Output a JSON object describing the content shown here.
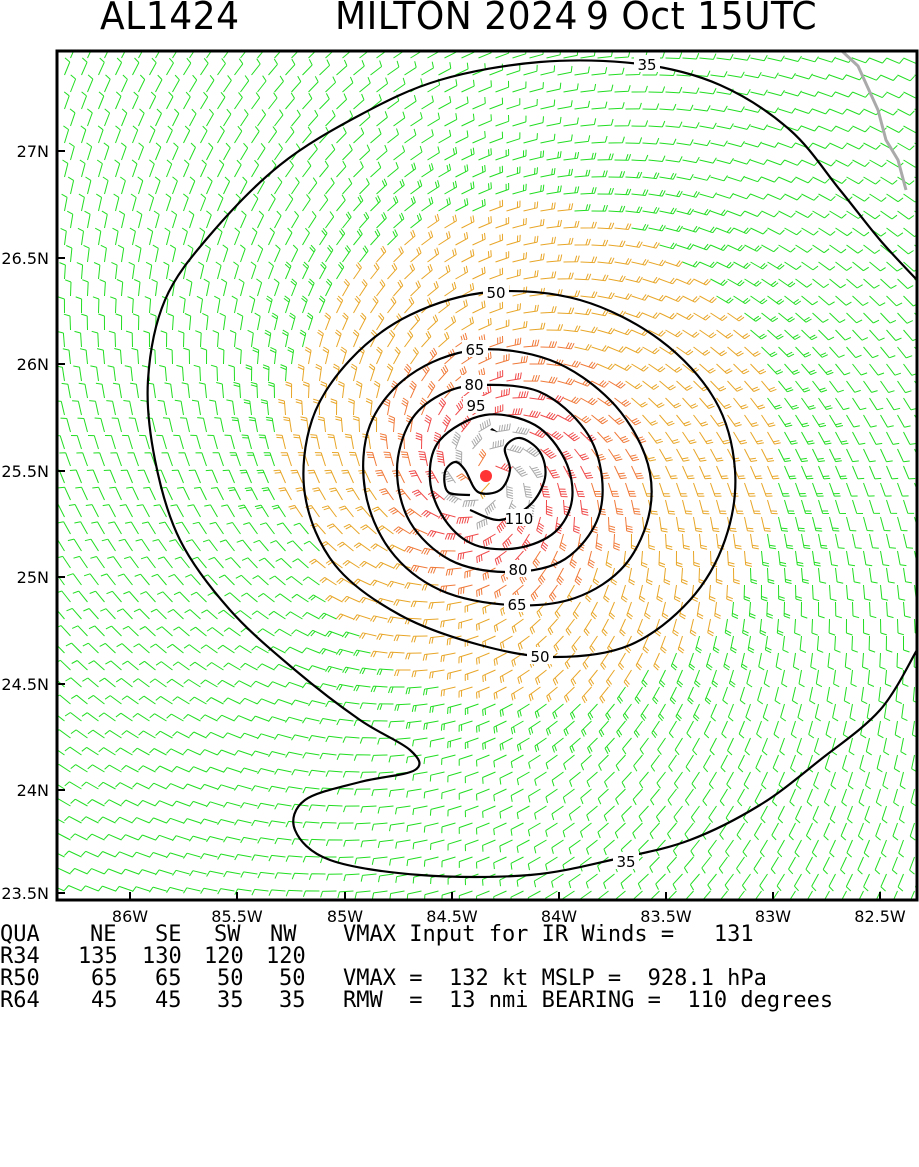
{
  "header": {
    "storm_id": "AL1424",
    "storm_name_year": "MILTON 2024",
    "datetime": "9 Oct 15UTC"
  },
  "map": {
    "lon_labels": [
      "86W",
      "85.5W",
      "85W",
      "84.5W",
      "84W",
      "83.5W",
      "83W",
      "82.5W"
    ],
    "lat_labels": [
      "27N",
      "26.5N",
      "26N",
      "25.5N",
      "25N",
      "24.5N",
      "24N",
      "23.5N"
    ],
    "contour_labels": [
      "35",
      "50",
      "65",
      "80",
      "95",
      "110",
      "35",
      "50",
      "65",
      "80"
    ],
    "center_marker": {
      "lon": -84.33,
      "lat": 25.47,
      "color": "#ff3333"
    },
    "barb_colors": {
      "lt34": "#22dd22",
      "34to50": "#e8a628",
      "50to64": "#f07a3a",
      "64to96": "#f04a4a",
      "gt96": "#aaaaaa"
    }
  },
  "table": {
    "header": {
      "label": "QUA",
      "quadrants": [
        "NE",
        "SE",
        "SW",
        "NW"
      ],
      "note": "VMAX Input for IR Winds =   131"
    },
    "rows": [
      {
        "label": "R34",
        "values": [
          "135",
          "130",
          "120",
          "120"
        ],
        "note": ""
      },
      {
        "label": "R50",
        "values": [
          "65",
          "65",
          "50",
          "50"
        ],
        "note": "VMAX =  132 kt MSLP =  928.1 hPa"
      },
      {
        "label": "R64",
        "values": [
          "45",
          "45",
          "35",
          "35"
        ],
        "note": "RMW  =  13 nmi BEARING =  110 degrees"
      }
    ]
  }
}
